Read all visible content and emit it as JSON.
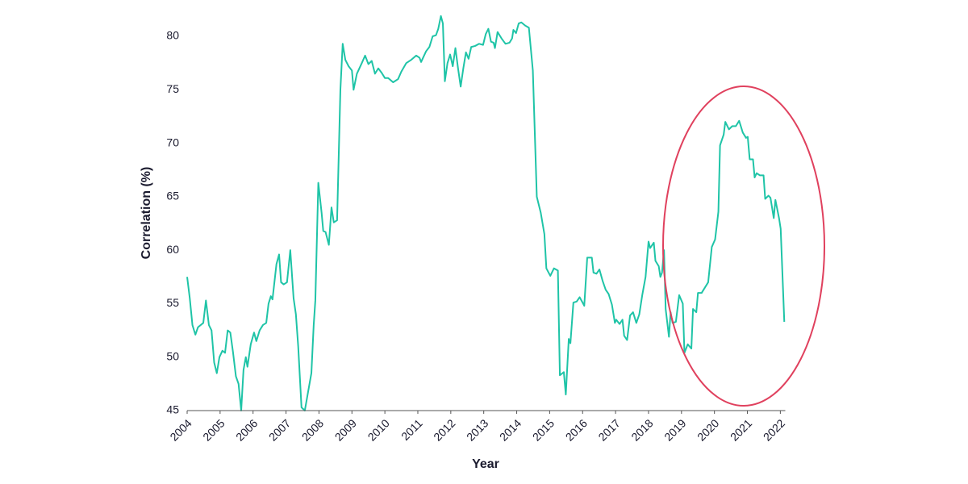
{
  "chart_data": {
    "type": "line",
    "x_label": "Year",
    "y_label": "Correlation (%)",
    "color": "#1fc4a7",
    "xlim": [
      2004,
      2022.15
    ],
    "ylim": [
      45,
      82
    ],
    "xticks": [
      2004,
      2005,
      2006,
      2007,
      2008,
      2009,
      2010,
      2011,
      2012,
      2013,
      2014,
      2015,
      2016,
      2017,
      2018,
      2019,
      2020,
      2021,
      2022
    ],
    "yticks": [
      45,
      50,
      55,
      60,
      65,
      70,
      75,
      80
    ],
    "x": [
      2004.0,
      2004.08,
      2004.16,
      2004.25,
      2004.33,
      2004.49,
      2004.57,
      2004.66,
      2004.74,
      2004.82,
      2004.9,
      2004.98,
      2005.07,
      2005.15,
      2005.23,
      2005.31,
      2005.39,
      2005.48,
      2005.56,
      2005.64,
      2005.71,
      2005.78,
      2005.83,
      2005.93,
      2006.03,
      2006.1,
      2006.2,
      2006.3,
      2006.4,
      2006.47,
      2006.54,
      2006.59,
      2006.71,
      2006.79,
      2006.85,
      2006.93,
      2007.03,
      2007.13,
      2007.23,
      2007.3,
      2007.37,
      2007.47,
      2007.57,
      2007.77,
      2007.84,
      2007.89,
      2007.98,
      2008.08,
      2008.13,
      2008.2,
      2008.3,
      2008.38,
      2008.45,
      2008.55,
      2008.65,
      2008.72,
      2008.8,
      2008.9,
      2009.0,
      2009.05,
      2009.15,
      2009.3,
      2009.4,
      2009.5,
      2009.6,
      2009.7,
      2009.8,
      2009.9,
      2010.0,
      2010.1,
      2010.25,
      2010.4,
      2010.5,
      2010.65,
      2010.8,
      2010.95,
      2011.05,
      2011.1,
      2011.25,
      2011.35,
      2011.45,
      2011.55,
      2011.62,
      2011.7,
      2011.76,
      2011.82,
      2011.9,
      2011.98,
      2012.06,
      2012.14,
      2012.22,
      2012.3,
      2012.38,
      2012.46,
      2012.54,
      2012.62,
      2012.74,
      2012.86,
      2012.98,
      2013.06,
      2013.14,
      2013.22,
      2013.3,
      2013.34,
      2013.42,
      2013.54,
      2013.66,
      2013.78,
      2013.86,
      2013.9,
      2013.98,
      2014.06,
      2014.14,
      2014.26,
      2014.37,
      2014.49,
      2014.61,
      2014.73,
      2014.84,
      2014.9,
      2015.02,
      2015.13,
      2015.25,
      2015.31,
      2015.43,
      2015.49,
      2015.58,
      2015.63,
      2015.72,
      2015.82,
      2015.91,
      2016.0,
      2016.05,
      2016.14,
      2016.28,
      2016.33,
      2016.42,
      2016.51,
      2016.61,
      2016.7,
      2016.79,
      2016.89,
      2016.98,
      2017.02,
      2017.12,
      2017.21,
      2017.26,
      2017.35,
      2017.44,
      2017.53,
      2017.63,
      2017.72,
      2017.81,
      2017.91,
      2018.0,
      2018.05,
      2018.16,
      2018.21,
      2018.31,
      2018.36,
      2018.41,
      2018.47,
      2018.52,
      2018.62,
      2018.67,
      2018.73,
      2018.83,
      2018.93,
      2019.04,
      2019.09,
      2019.19,
      2019.3,
      2019.35,
      2019.45,
      2019.5,
      2019.61,
      2019.71,
      2019.81,
      2019.92,
      2020.02,
      2020.12,
      2020.17,
      2020.28,
      2020.33,
      2020.44,
      2020.54,
      2020.65,
      2020.75,
      2020.86,
      2020.96,
      2021.01,
      2021.07,
      2021.17,
      2021.22,
      2021.28,
      2021.38,
      2021.49,
      2021.54,
      2021.64,
      2021.7,
      2021.8,
      2021.85,
      2021.96,
      2022.01,
      2022.12
    ],
    "values": [
      57.5,
      55.5,
      53,
      52.1,
      52.8,
      53.2,
      55.3,
      53,
      52.5,
      49.5,
      48.5,
      50,
      50.6,
      50.4,
      52.5,
      52.3,
      50.5,
      48.2,
      47.5,
      45,
      48.8,
      50,
      49.1,
      51.2,
      52.3,
      51.5,
      52.5,
      53,
      53.2,
      55,
      55.7,
      55.4,
      58.7,
      59.6,
      57,
      56.8,
      57,
      60,
      55.5,
      54,
      51,
      45.3,
      45,
      48.5,
      53,
      55.3,
      66.3,
      63.5,
      61.8,
      61.7,
      60.5,
      64,
      62.6,
      62.8,
      75,
      79.3,
      77.8,
      77.2,
      76.8,
      75,
      76.5,
      77.5,
      78.2,
      77.4,
      77.7,
      76.5,
      77,
      76.6,
      76.1,
      76.1,
      75.7,
      76,
      76.7,
      77.5,
      77.8,
      78.2,
      78,
      77.6,
      78.6,
      79,
      80,
      80.1,
      80.7,
      81.9,
      81.2,
      75.8,
      77.5,
      78.3,
      77.2,
      78.9,
      77,
      75.3,
      77,
      78.5,
      77.9,
      79,
      79.1,
      79.3,
      79.2,
      80.2,
      80.7,
      79.5,
      79.4,
      78.9,
      80.4,
      79.8,
      79.3,
      79.4,
      79.8,
      80.6,
      80.3,
      81.2,
      81.3,
      81,
      80.8,
      76.8,
      65,
      63.5,
      61.5,
      58.3,
      57.6,
      58.3,
      58.1,
      48.3,
      48.6,
      46.5,
      51.7,
      51.3,
      55.1,
      55.2,
      55.6,
      55.1,
      54.8,
      59.3,
      59.3,
      57.9,
      57.8,
      58.2,
      57.1,
      56.3,
      55.9,
      54.9,
      53.2,
      53.5,
      53.1,
      53.5,
      52,
      51.6,
      53.9,
      54.2,
      53.2,
      54,
      55.8,
      57.5,
      60.8,
      60.2,
      60.7,
      59,
      58.5,
      57.5,
      57.9,
      60,
      54.5,
      51.9,
      54.2,
      53.2,
      53.3,
      55.8,
      55,
      50.4,
      51.2,
      50.8,
      54.5,
      54.2,
      56,
      56,
      56.5,
      57,
      60.3,
      61,
      63.6,
      69.8,
      70.8,
      72,
      71.3,
      71.6,
      71.6,
      72.1,
      71,
      70.5,
      70.6,
      68.5,
      68.5,
      66.8,
      67.2,
      67,
      67,
      64.8,
      65.1,
      64.9,
      63,
      64.7,
      63,
      62,
      53.3
    ]
  }
}
